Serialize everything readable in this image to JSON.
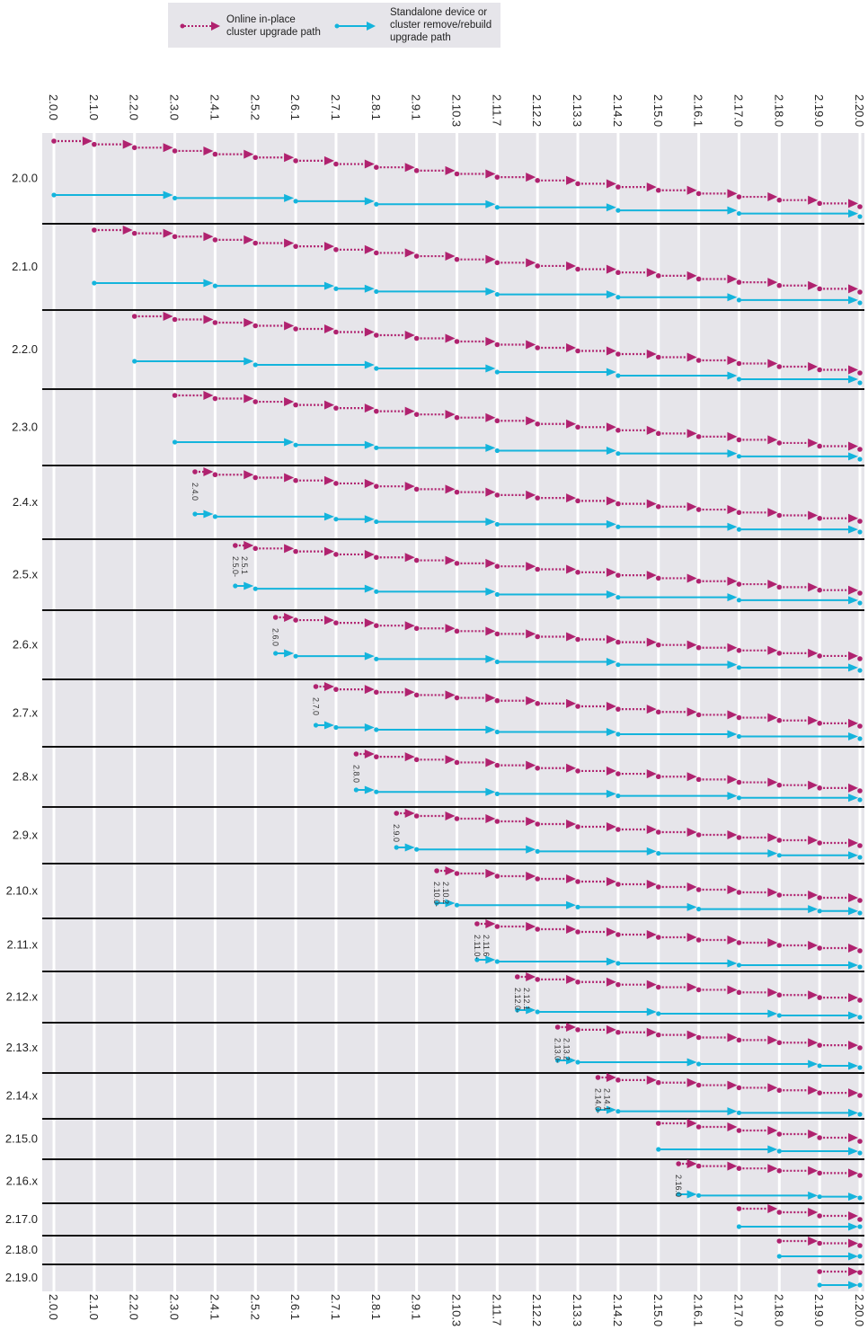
{
  "legend": {
    "online": "Online in-place cluster upgrade path",
    "online_lines": [
      "Online in-place",
      "cluster upgrade path"
    ],
    "standalone_lines": [
      "Standalone device or",
      "cluster remove/rebuild",
      "upgrade path"
    ]
  },
  "colors": {
    "online": "#b0226f",
    "standalone": "#14b4dc",
    "background": "#e6e5ea",
    "divider": "#111111"
  },
  "columns": [
    "2.0.0",
    "2.1.0",
    "2.2.0",
    "2.3.0",
    "2.4.1",
    "2.5.2",
    "2.6.1",
    "2.7.1",
    "2.8.1",
    "2.9.1",
    "2.10.3",
    "2.11.7",
    "2.12.2",
    "2.13.3",
    "2.14.2",
    "2.15.0",
    "2.16.1",
    "2.17.0",
    "2.18.0",
    "2.19.0",
    "2.20.0"
  ],
  "rows": [
    {
      "label": "2.0.0",
      "start": "2.0.0",
      "note": [],
      "standalone_path": [
        "2.0.0",
        "2.3.0",
        "2.6.1",
        "2.8.1",
        "2.11.7",
        "2.14.2",
        "2.17.0",
        "2.20.0"
      ]
    },
    {
      "label": "2.1.0",
      "start": "2.1.0",
      "note": [],
      "standalone_path": [
        "2.1.0",
        "2.4.1",
        "2.7.1",
        "2.8.1",
        "2.11.7",
        "2.14.2",
        "2.17.0",
        "2.20.0"
      ]
    },
    {
      "label": "2.2.0",
      "start": "2.2.0",
      "note": [],
      "standalone_path": [
        "2.2.0",
        "2.5.2",
        "2.8.1",
        "2.11.7",
        "2.14.2",
        "2.17.0",
        "2.20.0"
      ]
    },
    {
      "label": "2.3.0",
      "start": "2.3.0",
      "note": [],
      "standalone_path": [
        "2.3.0",
        "2.6.1",
        "2.8.1",
        "2.11.7",
        "2.14.2",
        "2.17.0",
        "2.20.0"
      ]
    },
    {
      "label": "2.4.x",
      "start": "2.4.0",
      "note": [
        "2.4.0"
      ],
      "standalone_path": [
        "2.4.0",
        "2.4.1",
        "2.7.1",
        "2.8.1",
        "2.11.7",
        "2.14.2",
        "2.17.0",
        "2.20.0"
      ]
    },
    {
      "label": "2.5.x",
      "start": "2.5.0",
      "note": [
        "2.5.0-",
        "2.5.1"
      ],
      "standalone_path": [
        "2.5.0",
        "2.5.2",
        "2.8.1",
        "2.11.7",
        "2.14.2",
        "2.17.0",
        "2.20.0"
      ]
    },
    {
      "label": "2.6.x",
      "start": "2.6.0",
      "note": [
        "2.6.0"
      ],
      "standalone_path": [
        "2.6.0",
        "2.6.1",
        "2.8.1",
        "2.11.7",
        "2.14.2",
        "2.17.0",
        "2.20.0"
      ]
    },
    {
      "label": "2.7.x",
      "start": "2.7.0",
      "note": [
        "2.7.0"
      ],
      "standalone_path": [
        "2.7.0",
        "2.7.1",
        "2.8.1",
        "2.11.7",
        "2.14.2",
        "2.17.0",
        "2.20.0"
      ]
    },
    {
      "label": "2.8.x",
      "start": "2.8.0",
      "note": [
        "2.8.0"
      ],
      "standalone_path": [
        "2.8.0",
        "2.8.1",
        "2.11.7",
        "2.14.2",
        "2.17.0",
        "2.20.0"
      ]
    },
    {
      "label": "2.9.x",
      "start": "2.9.0",
      "note": [
        "2.9.0"
      ],
      "standalone_path": [
        "2.9.0",
        "2.9.1",
        "2.12.2",
        "2.15.0",
        "2.18.0",
        "2.20.0"
      ]
    },
    {
      "label": "2.10.x",
      "start": "2.10.0",
      "note": [
        "2.10.0-",
        "2.10.2"
      ],
      "standalone_path": [
        "2.10.0",
        "2.10.3",
        "2.13.3",
        "2.16.1",
        "2.19.0",
        "2.20.0"
      ]
    },
    {
      "label": "2.11.x",
      "start": "2.11.0",
      "note": [
        "2.11.0-",
        "2.11.6"
      ],
      "standalone_path": [
        "2.11.0",
        "2.11.7",
        "2.14.2",
        "2.17.0",
        "2.20.0"
      ]
    },
    {
      "label": "2.12.x",
      "start": "2.12.0",
      "note": [
        "2.12.0-",
        "2.12.1"
      ],
      "standalone_path": [
        "2.12.0",
        "2.12.2",
        "2.15.0",
        "2.18.0",
        "2.20.0"
      ]
    },
    {
      "label": "2.13.x",
      "start": "2.13.0",
      "note": [
        "2.13.0-",
        "2.13.2"
      ],
      "standalone_path": [
        "2.13.0",
        "2.13.3",
        "2.16.1",
        "2.19.0",
        "2.20.0"
      ]
    },
    {
      "label": "2.14.x",
      "start": "2.14.0",
      "note": [
        "2.14.0-",
        "2.14.1"
      ],
      "standalone_path": [
        "2.14.0",
        "2.14.2",
        "2.17.0",
        "2.20.0"
      ]
    },
    {
      "label": "2.15.0",
      "start": "2.15.0",
      "note": [],
      "standalone_path": [
        "2.15.0",
        "2.18.0",
        "2.20.0"
      ]
    },
    {
      "label": "2.16.x",
      "start": "2.16.0",
      "note": [
        "2.16.0"
      ],
      "standalone_path": [
        "2.16.0",
        "2.16.1",
        "2.19.0",
        "2.20.0"
      ]
    },
    {
      "label": "2.17.0",
      "start": "2.17.0",
      "note": [],
      "standalone_path": [
        "2.17.0",
        "2.20.0"
      ]
    },
    {
      "label": "2.18.0",
      "start": "2.18.0",
      "note": [],
      "standalone_path": [
        "2.18.0",
        "2.20.0"
      ]
    },
    {
      "label": "2.19.0",
      "start": "2.19.0",
      "note": [],
      "standalone_path": [
        "2.19.0",
        "2.20.0"
      ]
    }
  ]
}
